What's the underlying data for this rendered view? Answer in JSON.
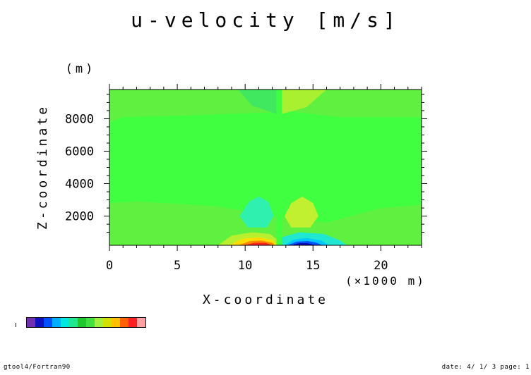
{
  "chart_data": {
    "type": "heatmap",
    "title": "u-velocity [m/s]",
    "xlabel": "X-coordinate",
    "x_unit": "(×1000 m)",
    "ylabel": "Z-coordinate",
    "y_unit": "(m)",
    "xlim": [
      0,
      23
    ],
    "ylim": [
      200,
      9800
    ],
    "x_ticks": [
      0,
      5,
      10,
      15,
      20
    ],
    "y_ticks": [
      2000,
      4000,
      6000,
      8000
    ],
    "background_color": "#40ff40",
    "regions": [
      {
        "label": "lower-left band",
        "color": "#60f040",
        "polygon": [
          [
            0,
            200
          ],
          [
            0,
            2800
          ],
          [
            2,
            2900
          ],
          [
            8,
            2600
          ],
          [
            12.3,
            2000
          ],
          [
            12.3,
            200
          ]
        ]
      },
      {
        "label": "lower-right band",
        "color": "#60f040",
        "polygon": [
          [
            12.7,
            200
          ],
          [
            12.7,
            1900
          ],
          [
            16,
            1600
          ],
          [
            20,
            2500
          ],
          [
            23,
            2700
          ],
          [
            23,
            200
          ]
        ]
      },
      {
        "label": "upper-left cell",
        "color": "#60f040",
        "polygon": [
          [
            0,
            7800
          ],
          [
            1,
            8100
          ],
          [
            6,
            8200
          ],
          [
            12.3,
            8400
          ],
          [
            12.3,
            9800
          ],
          [
            0,
            9800
          ]
        ]
      },
      {
        "label": "upper-right cell",
        "color": "#60f040",
        "polygon": [
          [
            12.7,
            9800
          ],
          [
            12.7,
            8500
          ],
          [
            17,
            8100
          ],
          [
            23,
            8100
          ],
          [
            23,
            9800
          ]
        ]
      },
      {
        "label": "central upper-left lobe",
        "color": "#40e860",
        "polygon": [
          [
            9.5,
            9800
          ],
          [
            10.5,
            8800
          ],
          [
            12.3,
            8300
          ],
          [
            12.3,
            9800
          ]
        ]
      },
      {
        "label": "central upper-right lobe",
        "color": "#a8f030",
        "polygon": [
          [
            12.7,
            9800
          ],
          [
            12.7,
            8300
          ],
          [
            14.5,
            8700
          ],
          [
            16,
            9800
          ]
        ]
      },
      {
        "label": "left vortex",
        "color": "#30f0b0",
        "polygon": [
          [
            9.6,
            2000
          ],
          [
            10.3,
            2900
          ],
          [
            11,
            3200
          ],
          [
            11.7,
            2900
          ],
          [
            12.1,
            2000
          ],
          [
            11.6,
            1300
          ],
          [
            10.2,
            1300
          ]
        ]
      },
      {
        "label": "right vortex",
        "color": "#c0f030",
        "polygon": [
          [
            12.9,
            2000
          ],
          [
            13.4,
            2800
          ],
          [
            14.2,
            3200
          ],
          [
            15,
            2800
          ],
          [
            15.4,
            2000
          ],
          [
            14.8,
            1300
          ],
          [
            13.4,
            1300
          ]
        ]
      },
      {
        "label": "left surface jet outer",
        "color": "#b8f030",
        "polygon": [
          [
            8,
            200
          ],
          [
            9,
            800
          ],
          [
            10.5,
            1000
          ],
          [
            11.8,
            900
          ],
          [
            12.3,
            600
          ],
          [
            12.3,
            200
          ]
        ]
      },
      {
        "label": "left surface jet yellow",
        "color": "#ffdd00",
        "polygon": [
          [
            8.8,
            200
          ],
          [
            9.8,
            600
          ],
          [
            11,
            700
          ],
          [
            12.1,
            500
          ],
          [
            12.3,
            200
          ]
        ]
      },
      {
        "label": "left surface jet orange",
        "color": "#ff8800",
        "polygon": [
          [
            9.5,
            200
          ],
          [
            10.3,
            450
          ],
          [
            11.2,
            500
          ],
          [
            12,
            350
          ],
          [
            12.2,
            200
          ]
        ]
      },
      {
        "label": "left surface jet red",
        "color": "#ff2020",
        "polygon": [
          [
            9.9,
            200
          ],
          [
            10.7,
            350
          ],
          [
            11.5,
            350
          ],
          [
            12,
            200
          ]
        ]
      },
      {
        "label": "right surface jet outer",
        "color": "#20e8d0",
        "polygon": [
          [
            12.7,
            200
          ],
          [
            12.7,
            700
          ],
          [
            14,
            1000
          ],
          [
            15.8,
            900
          ],
          [
            17,
            500
          ],
          [
            17.5,
            200
          ]
        ]
      },
      {
        "label": "right surface jet cyan",
        "color": "#00c8ff",
        "polygon": [
          [
            12.9,
            200
          ],
          [
            13.6,
            550
          ],
          [
            14.5,
            650
          ],
          [
            15.6,
            500
          ],
          [
            16.2,
            200
          ]
        ]
      },
      {
        "label": "right surface jet blue",
        "color": "#0050ff",
        "polygon": [
          [
            13.1,
            200
          ],
          [
            13.8,
            420
          ],
          [
            14.6,
            460
          ],
          [
            15.3,
            350
          ],
          [
            15.7,
            200
          ]
        ]
      },
      {
        "label": "right surface jet navy",
        "color": "#0000b0",
        "polygon": [
          [
            13.4,
            200
          ],
          [
            14,
            330
          ],
          [
            14.6,
            330
          ],
          [
            15.2,
            200
          ]
        ]
      }
    ],
    "colorbar": [
      "#7030b0",
      "#1010c0",
      "#0050ff",
      "#00b0ff",
      "#00e8e0",
      "#20e890",
      "#20c830",
      "#40e040",
      "#a0f040",
      "#d0e000",
      "#ffc000",
      "#ff6000",
      "#ff2020",
      "#ffa0a0"
    ],
    "grid": false,
    "legend": "colorbar bottom-left"
  },
  "footer": {
    "left": "gtool4/Fortran90",
    "right": "date: 4/ 1/ 3 page: 1"
  }
}
